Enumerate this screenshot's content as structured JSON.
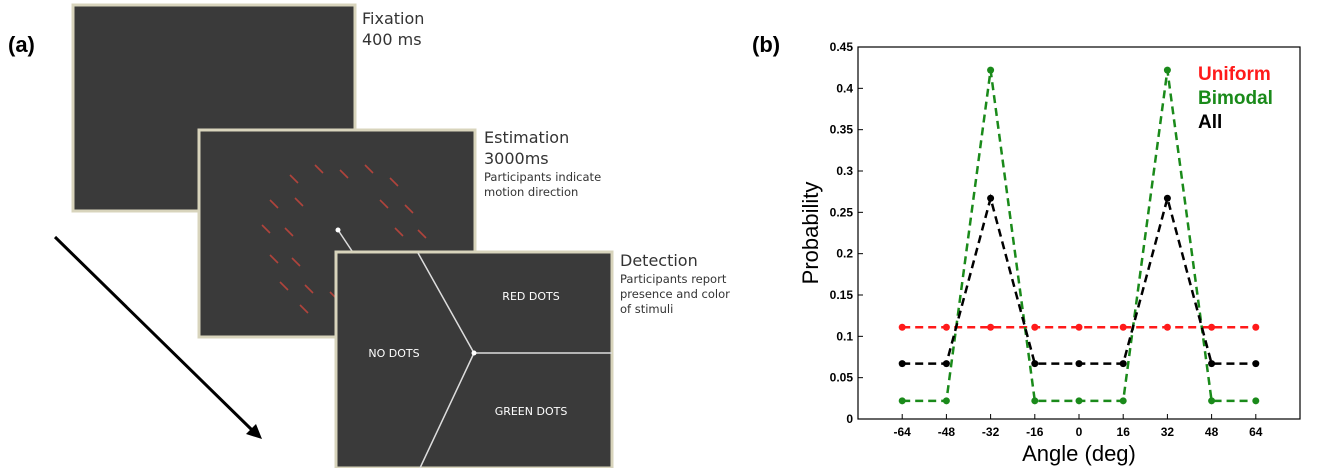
{
  "panel_a": {
    "label": "(a)",
    "screens": [
      {
        "title": "Fixation",
        "subtitle": "400 ms",
        "description": []
      },
      {
        "title": "Estimation",
        "subtitle": "3000ms",
        "description": [
          "Participants indicate",
          "motion direction"
        ]
      },
      {
        "title": "Detection",
        "subtitle": null,
        "description": [
          "Participants report",
          "presence and color",
          "of stimuli"
        ]
      }
    ],
    "options": [
      "RED DOTS",
      "NO DOTS",
      "GREEN DOTS"
    ]
  },
  "chart_data": {
    "type": "line",
    "label": "(b)",
    "x_label": "Angle (deg)",
    "y_label": "Probability",
    "x": [
      -64,
      -48,
      -32,
      -16,
      0,
      16,
      32,
      48,
      64
    ],
    "xlim": [
      -80,
      80
    ],
    "xticks": [
      -64,
      -48,
      -32,
      -16,
      0,
      16,
      32,
      48,
      64
    ],
    "ylim": [
      0,
      0.45
    ],
    "yticks": [
      0,
      0.05,
      0.1,
      0.15,
      0.2,
      0.25,
      0.3,
      0.35,
      0.4,
      0.45
    ],
    "legend": "upper right",
    "series": [
      {
        "name": "Uniform",
        "color": "#ff1a1a",
        "values": [
          0.111,
          0.111,
          0.111,
          0.111,
          0.111,
          0.111,
          0.111,
          0.111,
          0.111
        ]
      },
      {
        "name": "Bimodal",
        "color": "#1a8a1a",
        "values": [
          0.022,
          0.022,
          0.422,
          0.022,
          0.022,
          0.022,
          0.422,
          0.022,
          0.022
        ]
      },
      {
        "name": "All",
        "color": "#000000",
        "values": [
          0.067,
          0.067,
          0.267,
          0.067,
          0.067,
          0.067,
          0.267,
          0.067,
          0.067
        ]
      }
    ]
  }
}
